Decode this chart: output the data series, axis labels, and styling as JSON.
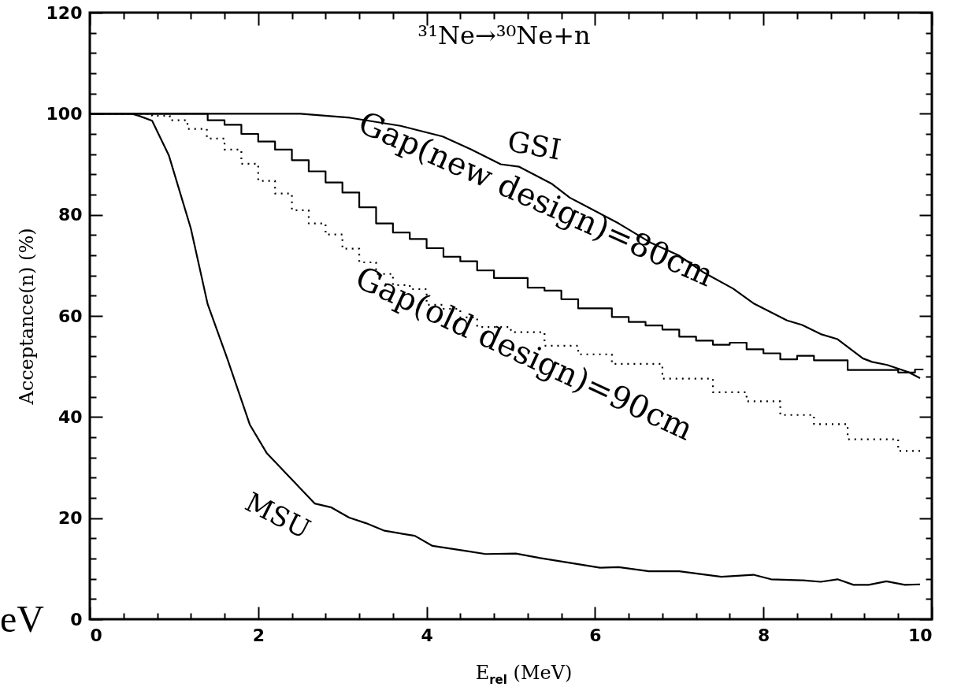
{
  "chart_data": {
    "type": "line",
    "title": "³¹Ne→³⁰Ne+n",
    "xlabel": "E$_{rel}$ (MeV)",
    "ylabel": "Acceptance(n) (%)",
    "annotations": [
      "eV"
    ],
    "xlim": [
      0,
      10
    ],
    "ylim": [
      0,
      120
    ],
    "xticks": [
      0,
      {
        "value": 0.4,
        "label": null
      },
      {
        "value": 0.8,
        "label": null
      },
      {
        "value": 1.2,
        "label": null
      },
      {
        "value": 1.6,
        "label": null
      },
      2,
      {
        "value": 2.4,
        "label": null
      },
      {
        "value": 2.8,
        "label": null
      },
      {
        "value": 3.2,
        "label": null
      },
      {
        "value": 3.6,
        "label": null
      },
      4,
      {
        "value": 4.4,
        "label": null
      },
      {
        "value": 4.8,
        "label": null
      },
      {
        "value": 5.2,
        "label": null
      },
      {
        "value": 5.6,
        "label": null
      },
      6,
      {
        "value": 6.4,
        "label": null
      },
      {
        "value": 6.8,
        "label": null
      },
      {
        "value": 7.2,
        "label": null
      },
      {
        "value": 7.6,
        "label": null
      },
      8,
      {
        "value": 8.4,
        "label": null
      },
      {
        "value": 8.8,
        "label": null
      },
      {
        "value": 9.2,
        "label": null
      },
      {
        "value": 9.6,
        "label": null
      },
      10
    ],
    "yticks": [
      0,
      {
        "value": 4,
        "label": null
      },
      {
        "value": 8,
        "label": null
      },
      {
        "value": 12,
        "label": null
      },
      {
        "value": 16,
        "label": null
      },
      20,
      {
        "value": 24,
        "label": null
      },
      {
        "value": 28,
        "label": null
      },
      {
        "value": 32,
        "label": null
      },
      {
        "value": 36,
        "label": null
      },
      40,
      {
        "value": 44,
        "label": null
      },
      {
        "value": 48,
        "label": null
      },
      {
        "value": 52,
        "label": null
      },
      {
        "value": 56,
        "label": null
      },
      60,
      {
        "value": 64,
        "label": null
      },
      {
        "value": 68,
        "label": null
      },
      {
        "value": 72,
        "label": null
      },
      {
        "value": 76,
        "label": null
      },
      80,
      {
        "value": 84,
        "label": null
      },
      {
        "value": 88,
        "label": null
      },
      {
        "value": 92,
        "label": null
      },
      {
        "value": 96,
        "label": null
      },
      100,
      {
        "value": 104,
        "label": null
      },
      {
        "value": 108,
        "label": null
      },
      {
        "value": 112,
        "label": null
      },
      {
        "value": 116,
        "label": null
      },
      120
    ],
    "series": [
      {
        "name": "GSI",
        "color": "#000000",
        "line_style": "solid",
        "x": [
          0,
          2.5,
          3.09,
          3.69,
          4.19,
          4.52,
          4.88,
          5.1,
          5.49,
          5.7,
          6.28,
          6.67,
          6.99,
          7.28,
          7.64,
          7.89,
          8.28,
          8.46,
          8.68,
          8.88,
          9.18,
          9.29,
          9.47,
          9.72,
          9.86
        ],
        "values": [
          100,
          100,
          99.2,
          97.6,
          95.5,
          93,
          90,
          89.5,
          86.1,
          83.4,
          78.3,
          74.4,
          72,
          68.7,
          65.4,
          62.4,
          59.1,
          58.2,
          56.4,
          55.4,
          51.6,
          50.9,
          50.3,
          48.9,
          47.7
        ]
      },
      {
        "name": "Gap(new design)=80cm",
        "type": "step",
        "color": "#000000",
        "line_style": "solid",
        "x": [
          0,
          1.4,
          1.6,
          1.8,
          2.0,
          2.2,
          2.4,
          2.6,
          2.8,
          3.0,
          3.2,
          3.4,
          3.6,
          3.8,
          4.0,
          4.2,
          4.4,
          4.6,
          4.8,
          5.2,
          5.4,
          5.6,
          5.8,
          6.2,
          6.4,
          6.6,
          6.8,
          7.0,
          7.2,
          7.4,
          7.6,
          7.8,
          8.0,
          8.2,
          8.4,
          8.6,
          9.0,
          9.6,
          9.8,
          9.9
        ],
        "values": [
          100,
          98.7,
          97.8,
          96,
          94.5,
          92.9,
          90.8,
          88.6,
          86.4,
          84.4,
          81.5,
          78.3,
          76.5,
          75.2,
          73.4,
          71.7,
          70.8,
          69,
          67.5,
          65.6,
          65,
          63.3,
          61.5,
          59.8,
          58.8,
          58.1,
          57.3,
          55.9,
          55.1,
          54.3,
          54.7,
          53.4,
          52.6,
          51.4,
          52.1,
          51.2,
          49.3,
          48.8,
          49.4,
          49.4
        ]
      },
      {
        "name": "Gap(old design)=90cm",
        "type": "step",
        "color": "#000000",
        "line_style": "dotted",
        "x": [
          0,
          0.74,
          0.95,
          1.16,
          1.39,
          1.6,
          1.8,
          2.0,
          2.2,
          2.4,
          2.6,
          2.8,
          3.0,
          3.2,
          3.4,
          3.6,
          3.8,
          4.0,
          4.2,
          4.4,
          4.6,
          5.0,
          5.4,
          5.8,
          6.2,
          6.8,
          7.4,
          7.8,
          8.2,
          8.6,
          9.0,
          9.6,
          9.9
        ],
        "values": [
          100,
          99.6,
          98.7,
          97,
          95.1,
          92.9,
          90.1,
          86.7,
          84.2,
          80.9,
          78.3,
          76.1,
          73.3,
          70.6,
          68.3,
          66.1,
          65.3,
          62.2,
          61.4,
          59.7,
          57.8,
          56.8,
          54.1,
          52.4,
          50.5,
          47.6,
          44.9,
          43.1,
          40.4,
          38.6,
          35.6,
          33.3,
          33.3
        ]
      },
      {
        "name": "MSU",
        "color": "#000000",
        "line_style": "solid",
        "x": [
          0,
          0.5,
          0.58,
          0.74,
          0.94,
          1.2,
          1.4,
          1.63,
          1.9,
          2.1,
          2.67,
          2.87,
          3.08,
          3.28,
          3.5,
          3.86,
          4.07,
          4.47,
          4.7,
          5.06,
          5.35,
          6.06,
          6.28,
          6.64,
          7.0,
          7.5,
          7.88,
          8.09,
          8.47,
          8.68,
          8.88,
          9.07,
          9.25,
          9.46,
          9.68,
          9.86
        ],
        "values": [
          100,
          100,
          99.6,
          98.6,
          91.7,
          77.3,
          62.3,
          51.7,
          38.5,
          32.9,
          22.9,
          22.1,
          20.1,
          19,
          17.5,
          16.5,
          14.5,
          13.5,
          12.9,
          13,
          12.1,
          10.2,
          10.3,
          9.5,
          9.5,
          8.4,
          8.8,
          7.9,
          7.7,
          7.4,
          7.9,
          6.8,
          6.8,
          7.5,
          6.8,
          6.9
        ]
      }
    ]
  }
}
